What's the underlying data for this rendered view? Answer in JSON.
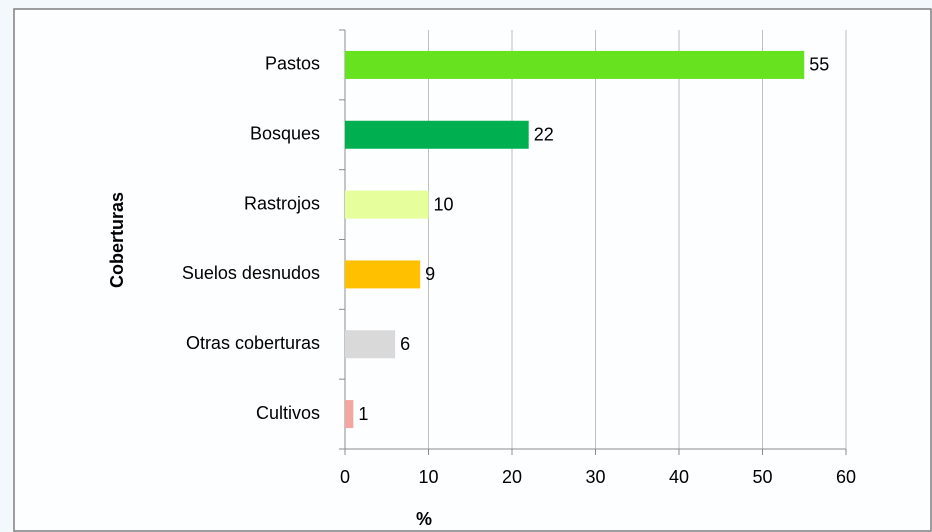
{
  "chart_data": {
    "type": "bar",
    "orientation": "horizontal",
    "categories": [
      "Pastos",
      "Bosques",
      "Rastrojos",
      "Suelos desnudos",
      "Otras coberturas",
      "Cultivos"
    ],
    "values": [
      55,
      22,
      10,
      9,
      6,
      1
    ],
    "colors": [
      "#66e21e",
      "#00b050",
      "#e6ff9c",
      "#ffc000",
      "#d9d9d9",
      "#f4a6a0"
    ],
    "xlabel": "%",
    "ylabel": "Coberturas",
    "xlim": [
      0,
      60
    ],
    "xticks": [
      0,
      10,
      20,
      30,
      40,
      50,
      60
    ],
    "grid": true
  }
}
